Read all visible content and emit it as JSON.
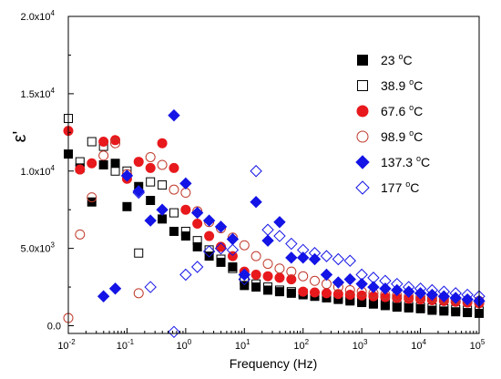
{
  "chart_data": {
    "type": "scatter",
    "title": "",
    "xlabel": "Frequency (Hz)",
    "ylabel": "ε'",
    "xscale": "log",
    "xlim": [
      0.01,
      100000
    ],
    "ylim": [
      -500,
      20000
    ],
    "x_ticks": [
      {
        "value": 0.01,
        "mantissa": "10",
        "exp": "-2"
      },
      {
        "value": 0.1,
        "mantissa": "10",
        "exp": "-1"
      },
      {
        "value": 1,
        "mantissa": "10",
        "exp": "0"
      },
      {
        "value": 10,
        "mantissa": "10",
        "exp": "1"
      },
      {
        "value": 100,
        "mantissa": "10",
        "exp": "2"
      },
      {
        "value": 1000,
        "mantissa": "10",
        "exp": "3"
      },
      {
        "value": 10000,
        "mantissa": "10",
        "exp": "4"
      },
      {
        "value": 100000,
        "mantissa": "10",
        "exp": "5"
      }
    ],
    "y_ticks": [
      {
        "value": 0,
        "mantissa": "0.0",
        "exp": ""
      },
      {
        "value": 5000,
        "mantissa": "5.0x10",
        "exp": "3"
      },
      {
        "value": 10000,
        "mantissa": "1.0x10",
        "exp": "4"
      },
      {
        "value": 15000,
        "mantissa": "1.5x10",
        "exp": "4"
      },
      {
        "value": 20000,
        "mantissa": "2.0x10",
        "exp": "4"
      }
    ],
    "legend_position": "right",
    "series": [
      {
        "name": "23 °C",
        "temp": "23 ",
        "unit": "C",
        "marker": "square",
        "filled": true,
        "color": "#000000",
        "x": [
          0.01,
          0.0158,
          0.0251,
          0.0398,
          0.0631,
          0.1,
          0.158,
          0.251,
          0.398,
          0.631,
          1,
          1.58,
          2.51,
          3.98,
          6.31,
          10,
          15.8,
          25.1,
          39.8,
          63.1,
          100,
          158,
          251,
          398,
          631,
          1000,
          1580,
          2510,
          3980,
          6310,
          10000,
          15800,
          25100,
          39800,
          63100,
          100000
        ],
        "y": [
          11100,
          10200,
          8000,
          10400,
          10500,
          7700,
          9000,
          8100,
          6900,
          6100,
          5800,
          5100,
          4500,
          4100,
          3800,
          2600,
          2500,
          2300,
          2200,
          2100,
          2000,
          1900,
          1800,
          1700,
          1600,
          1500,
          1400,
          1300,
          1200,
          1150,
          1100,
          1000,
          950,
          900,
          850,
          800
        ]
      },
      {
        "name": "38.9 °C",
        "temp": "38.9 ",
        "unit": "C",
        "marker": "square",
        "filled": false,
        "color": "#000000",
        "x": [
          0.01,
          0.0158,
          0.0251,
          0.0398,
          0.0631,
          0.1,
          0.158,
          0.251,
          0.398,
          0.631,
          1,
          1.58,
          2.51,
          3.98,
          6.31,
          10,
          15.8,
          25.1,
          39.8,
          63.1,
          100,
          158,
          251,
          398,
          631,
          1000,
          1580,
          2510,
          3980,
          6310,
          10000,
          15800,
          25100,
          39800,
          63100,
          100000
        ],
        "y": [
          13400,
          10600,
          11900,
          11600,
          10000,
          10000,
          4700,
          9300,
          9100,
          7300,
          6100,
          5500,
          4900,
          4300,
          3700,
          2900,
          2700,
          2500,
          2300,
          2200,
          2100,
          2000,
          1900,
          1800,
          1700,
          1600,
          1500,
          1400,
          1300,
          1250,
          1200,
          1150,
          1100,
          1050,
          1000,
          950
        ]
      },
      {
        "name": "67.6 °C",
        "temp": "67.6 ",
        "unit": "C",
        "marker": "circle",
        "filled": true,
        "color": "#e8191c",
        "x": [
          0.01,
          0.0158,
          0.0251,
          0.0398,
          0.0631,
          0.1,
          0.158,
          0.251,
          0.398,
          0.631,
          1,
          1.58,
          2.51,
          3.98,
          6.31,
          10,
          15.8,
          25.1,
          39.8,
          63.1,
          100,
          158,
          251,
          398,
          631,
          1000,
          1580,
          2510,
          3980,
          6310,
          10000,
          15800,
          25100,
          39800,
          63100,
          100000
        ],
        "y": [
          12600,
          10100,
          10500,
          11900,
          12000,
          9500,
          10600,
          10200,
          11800,
          10200,
          7500,
          6600,
          5800,
          5100,
          4500,
          3500,
          3300,
          3200,
          3100,
          3000,
          2200,
          2150,
          2100,
          2050,
          2000,
          1950,
          1900,
          1850,
          1800,
          1750,
          1700,
          1650,
          1600,
          1550,
          1500,
          1450
        ]
      },
      {
        "name": "98.9 °C",
        "temp": "98.9 ",
        "unit": "C",
        "marker": "circle",
        "filled": false,
        "color": "#c0392b",
        "x": [
          0.01,
          0.0158,
          0.0251,
          0.0398,
          0.0631,
          0.1,
          0.158,
          0.251,
          0.398,
          0.631,
          1,
          1.58,
          2.51,
          3.98,
          6.31,
          10,
          15.8,
          25.1,
          39.8,
          63.1,
          100,
          158,
          251,
          398,
          631,
          1000,
          1580,
          2510,
          3980,
          6310,
          10000,
          15800,
          25100,
          39800,
          63100,
          100000
        ],
        "y": [
          500,
          5900,
          8300,
          11000,
          11800,
          9800,
          2100,
          10900,
          10400,
          8800,
          8600,
          7400,
          6700,
          6300,
          5700,
          5200,
          4500,
          4000,
          3700,
          3500,
          3200,
          2900,
          2700,
          2500,
          2300,
          2200,
          2100,
          2000,
          1950,
          1900,
          1850,
          1800,
          1750,
          1700,
          1650,
          1600
        ]
      },
      {
        "name": "137.3 °C",
        "temp": "137.3 ",
        "unit": "C",
        "marker": "diamond",
        "filled": true,
        "color": "#1414e6",
        "x": [
          0.0398,
          0.0631,
          0.1,
          0.158,
          0.251,
          0.398,
          0.631,
          1,
          1.58,
          2.51,
          3.98,
          6.31,
          10,
          15.8,
          25.1,
          39.8,
          63.1,
          100,
          158,
          251,
          398,
          631,
          1000,
          1580,
          2510,
          3980,
          6310,
          10000,
          15800,
          25100,
          39800,
          63100,
          100000
        ],
        "y": [
          1900,
          2400,
          9700,
          8700,
          6800,
          7500,
          13600,
          9200,
          7300,
          6800,
          6400,
          5600,
          3300,
          8000,
          5500,
          6700,
          4400,
          4400,
          4300,
          3300,
          2800,
          3000,
          2700,
          2500,
          2400,
          2300,
          2200,
          2100,
          2000,
          1900,
          1800,
          1700,
          1600
        ]
      },
      {
        "name": "177 °C",
        "temp": "177 ",
        "unit": "C",
        "marker": "diamond",
        "filled": false,
        "color": "#1414e6",
        "x": [
          0.158,
          0.251,
          0.631,
          1,
          1.58,
          2.51,
          3.98,
          6.31,
          10,
          15.8,
          25.1,
          39.8,
          63.1,
          100,
          158,
          251,
          398,
          631,
          1000,
          1580,
          2510,
          3980,
          6310,
          10000,
          15800,
          25100,
          39800,
          63100,
          100000
        ],
        "y": [
          8600,
          2500,
          -400,
          3300,
          3800,
          4800,
          5000,
          4900,
          3000,
          10000,
          6200,
          5800,
          5300,
          4900,
          4700,
          4500,
          4300,
          4200,
          3300,
          3100,
          2900,
          2700,
          2500,
          2400,
          2300,
          2200,
          2100,
          2000,
          1900
        ]
      }
    ]
  }
}
